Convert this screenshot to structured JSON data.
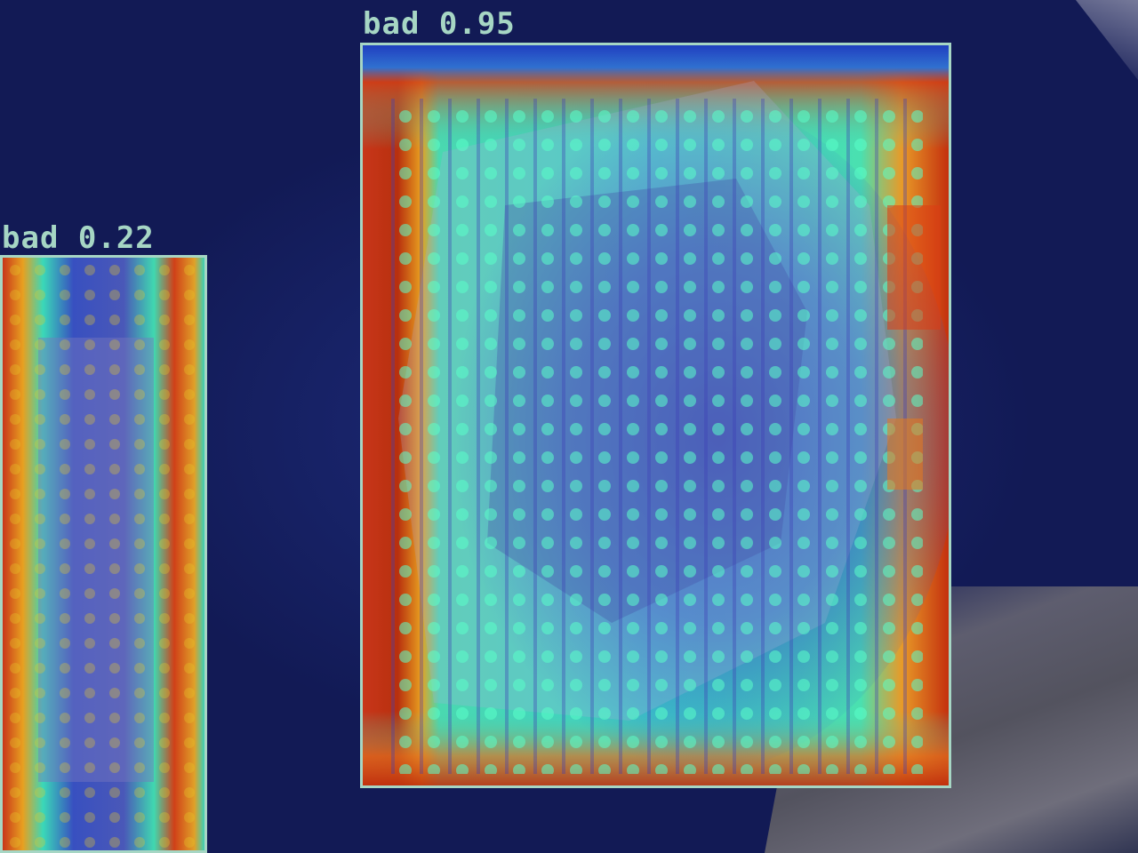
{
  "detections": [
    {
      "label": "bad 0.95",
      "class": "bad",
      "score": 0.95
    },
    {
      "label": "bad 0.22",
      "class": "bad",
      "score": 0.22
    }
  ],
  "colors": {
    "box_outline": "#a6d6c4",
    "background": "#141d5c",
    "heat_low": "#2a33a8",
    "heat_mid": "#3ee0c0",
    "heat_high": "#d03010"
  }
}
